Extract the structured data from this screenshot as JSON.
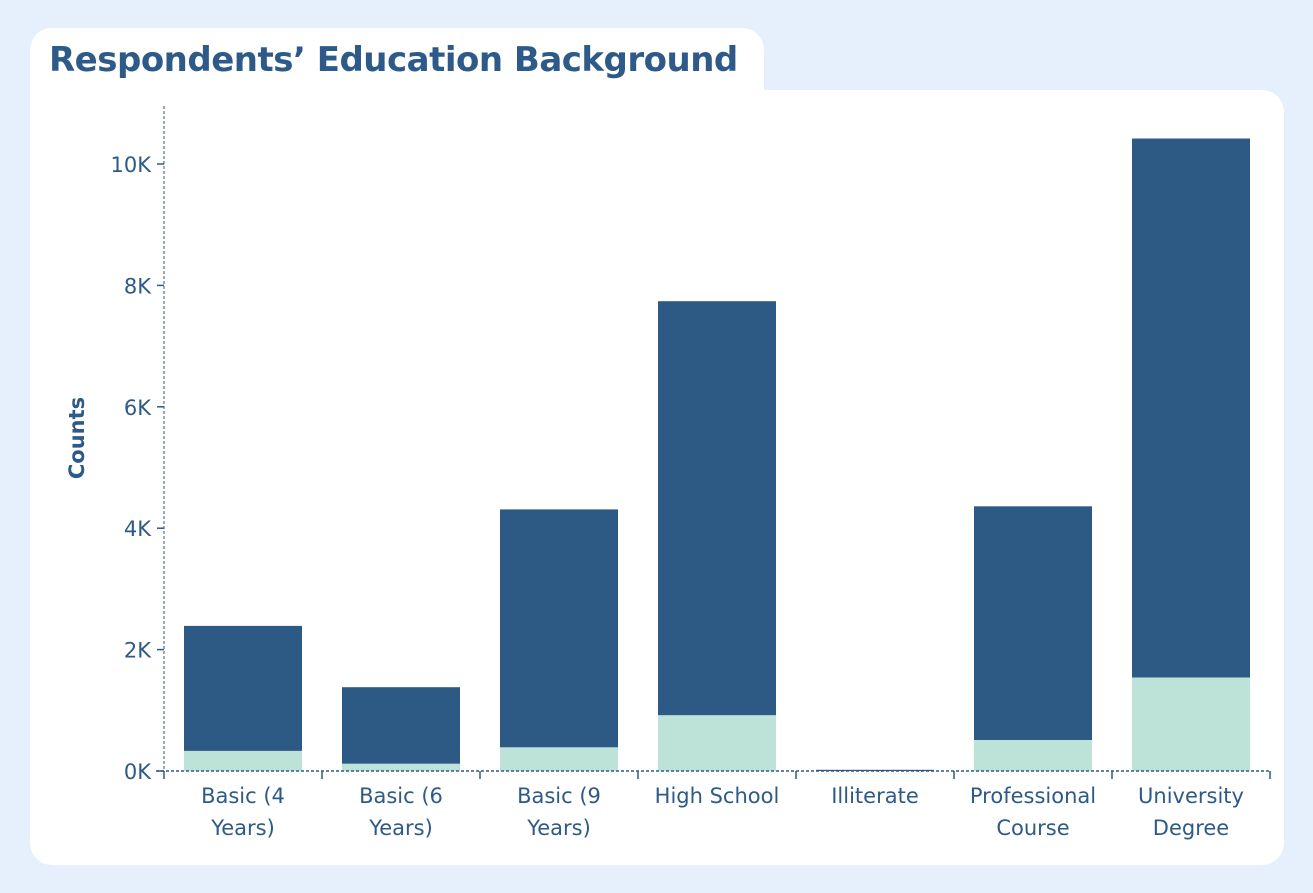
{
  "chart_data": {
    "type": "bar",
    "stacked": true,
    "title": "Respondents’ Education Background",
    "ylabel": "Counts",
    "xlabel": "",
    "ylim": [
      0,
      11000
    ],
    "yticks": [
      {
        "value": 0,
        "label": "0K"
      },
      {
        "value": 2000,
        "label": "2K"
      },
      {
        "value": 4000,
        "label": "4K"
      },
      {
        "value": 6000,
        "label": "6K"
      },
      {
        "value": 8000,
        "label": "8K"
      },
      {
        "value": 10000,
        "label": "10K"
      }
    ],
    "categories": [
      [
        "Basic (4",
        "Years)"
      ],
      [
        "Basic (6",
        "Years)"
      ],
      [
        "Basic (9",
        "Years)"
      ],
      [
        "High School"
      ],
      [
        "Illiterate"
      ],
      [
        "Professional",
        "Course"
      ],
      [
        "University",
        "Degree"
      ]
    ],
    "series": [
      {
        "color": "#bde3d9",
        "values": [
          330,
          120,
          390,
          920,
          0,
          510,
          1540
        ]
      },
      {
        "color": "#2d5a85",
        "values": [
          2060,
          1260,
          3920,
          6820,
          20,
          3850,
          8880
        ]
      }
    ],
    "grid": false,
    "legend": "none"
  },
  "colors": {
    "page_background": "#e6f0fd",
    "card_background": "#ffffff",
    "text": "#2d5a88"
  }
}
